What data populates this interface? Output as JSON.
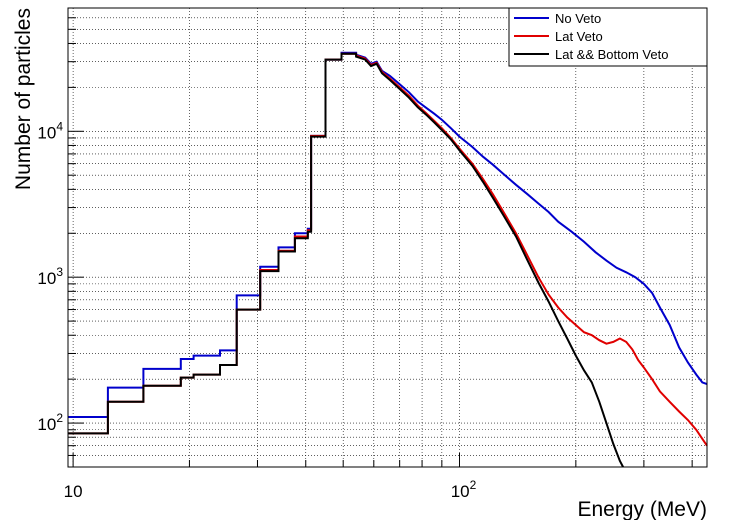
{
  "chart_data": {
    "type": "line",
    "title": "",
    "xlabel": "Energy (MeV)",
    "ylabel": "Number of particles",
    "xscale": "log",
    "yscale": "log",
    "xlim": [
      9.7,
      437
    ],
    "ylim": [
      50,
      70000
    ],
    "grid": true,
    "legend_position": "top-right",
    "x_ticks": [
      {
        "value": 10,
        "label": "10"
      },
      {
        "value": 100,
        "label": "10",
        "exp": "2"
      }
    ],
    "y_ticks": [
      {
        "value": 100,
        "label": "10",
        "exp": "2"
      },
      {
        "value": 1000,
        "label": "10",
        "exp": "3"
      },
      {
        "value": 10000,
        "label": "10",
        "exp": "4"
      }
    ],
    "series": [
      {
        "name": "No Veto",
        "color": "#0000cc",
        "points": [
          [
            9.7,
            110
          ],
          [
            12.3,
            110
          ],
          [
            12.3,
            175
          ],
          [
            15.2,
            175
          ],
          [
            15.2,
            235
          ],
          [
            19.0,
            235
          ],
          [
            19.0,
            275
          ],
          [
            20.5,
            275
          ],
          [
            20.5,
            290
          ],
          [
            24.0,
            290
          ],
          [
            24.0,
            315
          ],
          [
            26.5,
            315
          ],
          [
            26.5,
            750
          ],
          [
            30.5,
            750
          ],
          [
            30.5,
            1180
          ],
          [
            34.0,
            1180
          ],
          [
            34.0,
            1600
          ],
          [
            37.5,
            1600
          ],
          [
            37.5,
            2000
          ],
          [
            40.5,
            2000
          ],
          [
            40.5,
            2150
          ],
          [
            41.3,
            2150
          ],
          [
            41.3,
            9300
          ],
          [
            45.0,
            9300
          ],
          [
            45.0,
            31000
          ],
          [
            49.5,
            31000
          ],
          [
            49.5,
            34500
          ],
          [
            54.0,
            34500
          ],
          [
            54.0,
            33500
          ],
          [
            57.0,
            32000
          ],
          [
            59.0,
            29000
          ],
          [
            61.0,
            30000
          ],
          [
            63.0,
            26000
          ],
          [
            66.0,
            24000
          ],
          [
            70.0,
            21000
          ],
          [
            74.0,
            18500
          ],
          [
            78.0,
            16000
          ],
          [
            82.0,
            14500
          ],
          [
            86.0,
            13200
          ],
          [
            90.0,
            12000
          ],
          [
            95.0,
            10500
          ],
          [
            100.0,
            9200
          ],
          [
            108.0,
            7800
          ],
          [
            115.0,
            6700
          ],
          [
            122.0,
            5900
          ],
          [
            130.0,
            5100
          ],
          [
            140.0,
            4300
          ],
          [
            150.0,
            3700
          ],
          [
            160.0,
            3200
          ],
          [
            170.0,
            2800
          ],
          [
            180.0,
            2400
          ],
          [
            195.0,
            2050
          ],
          [
            210.0,
            1750
          ],
          [
            225.0,
            1480
          ],
          [
            240.0,
            1300
          ],
          [
            255.0,
            1160
          ],
          [
            270.0,
            1080
          ],
          [
            285.0,
            1000
          ],
          [
            300.0,
            900
          ],
          [
            315.0,
            780
          ],
          [
            330.0,
            620
          ],
          [
            350.0,
            470
          ],
          [
            370.0,
            330
          ],
          [
            390.0,
            260
          ],
          [
            410.0,
            215
          ],
          [
            425.0,
            190
          ],
          [
            437.0,
            185
          ]
        ]
      },
      {
        "name": "Lat Veto",
        "color": "#e00000",
        "points": [
          [
            9.7,
            85
          ],
          [
            12.3,
            85
          ],
          [
            12.3,
            140
          ],
          [
            15.2,
            140
          ],
          [
            15.2,
            180
          ],
          [
            19.0,
            180
          ],
          [
            19.0,
            205
          ],
          [
            20.5,
            205
          ],
          [
            20.5,
            215
          ],
          [
            24.0,
            215
          ],
          [
            24.0,
            250
          ],
          [
            26.5,
            250
          ],
          [
            26.5,
            600
          ],
          [
            30.5,
            600
          ],
          [
            30.5,
            1120
          ],
          [
            34.0,
            1120
          ],
          [
            34.0,
            1520
          ],
          [
            37.5,
            1520
          ],
          [
            37.5,
            1900
          ],
          [
            40.5,
            1900
          ],
          [
            40.5,
            2100
          ],
          [
            41.3,
            2100
          ],
          [
            41.3,
            9300
          ],
          [
            45.0,
            9300
          ],
          [
            45.0,
            31000
          ],
          [
            49.5,
            31000
          ],
          [
            49.5,
            34000
          ],
          [
            54.0,
            34000
          ],
          [
            54.0,
            33000
          ],
          [
            57.0,
            31500
          ],
          [
            59.0,
            28500
          ],
          [
            61.0,
            29500
          ],
          [
            63.0,
            25500
          ],
          [
            66.0,
            23000
          ],
          [
            70.0,
            20000
          ],
          [
            74.0,
            17500
          ],
          [
            78.0,
            15000
          ],
          [
            82.0,
            13300
          ],
          [
            86.0,
            11800
          ],
          [
            90.0,
            10500
          ],
          [
            95.0,
            9000
          ],
          [
            100.0,
            7600
          ],
          [
            108.0,
            6000
          ],
          [
            115.0,
            4700
          ],
          [
            122.0,
            3700
          ],
          [
            130.0,
            2800
          ],
          [
            140.0,
            2000
          ],
          [
            150.0,
            1400
          ],
          [
            160.0,
            1000
          ],
          [
            170.0,
            760
          ],
          [
            180.0,
            620
          ],
          [
            190.0,
            530
          ],
          [
            200.0,
            470
          ],
          [
            210.0,
            420
          ],
          [
            220.0,
            400
          ],
          [
            230.0,
            370
          ],
          [
            240.0,
            350
          ],
          [
            250.0,
            360
          ],
          [
            260.0,
            380
          ],
          [
            270.0,
            360
          ],
          [
            280.0,
            320
          ],
          [
            290.0,
            270
          ],
          [
            300.0,
            240
          ],
          [
            315.0,
            200
          ],
          [
            330.0,
            165
          ],
          [
            350.0,
            140
          ],
          [
            370.0,
            120
          ],
          [
            390.0,
            105
          ],
          [
            410.0,
            90
          ],
          [
            425.0,
            78
          ],
          [
            437.0,
            70
          ]
        ]
      },
      {
        "name": "Lat && Bottom Veto",
        "color": "#000000",
        "points": [
          [
            9.7,
            85
          ],
          [
            12.3,
            85
          ],
          [
            12.3,
            140
          ],
          [
            15.2,
            140
          ],
          [
            15.2,
            180
          ],
          [
            19.0,
            180
          ],
          [
            19.0,
            205
          ],
          [
            20.5,
            205
          ],
          [
            20.5,
            215
          ],
          [
            24.0,
            215
          ],
          [
            24.0,
            250
          ],
          [
            26.5,
            250
          ],
          [
            26.5,
            600
          ],
          [
            30.5,
            600
          ],
          [
            30.5,
            1100
          ],
          [
            34.0,
            1100
          ],
          [
            34.0,
            1500
          ],
          [
            37.5,
            1500
          ],
          [
            37.5,
            1850
          ],
          [
            40.5,
            1850
          ],
          [
            40.5,
            2050
          ],
          [
            41.3,
            2050
          ],
          [
            41.3,
            9200
          ],
          [
            45.0,
            9200
          ],
          [
            45.0,
            31000
          ],
          [
            49.5,
            31000
          ],
          [
            49.5,
            34000
          ],
          [
            54.0,
            34000
          ],
          [
            54.0,
            32500
          ],
          [
            57.0,
            31000
          ],
          [
            59.0,
            28000
          ],
          [
            61.0,
            29000
          ],
          [
            63.0,
            25000
          ],
          [
            66.0,
            22500
          ],
          [
            70.0,
            19500
          ],
          [
            74.0,
            17000
          ],
          [
            78.0,
            14600
          ],
          [
            82.0,
            13000
          ],
          [
            86.0,
            11500
          ],
          [
            90.0,
            10200
          ],
          [
            95.0,
            8800
          ],
          [
            100.0,
            7400
          ],
          [
            108.0,
            5800
          ],
          [
            115.0,
            4500
          ],
          [
            122.0,
            3500
          ],
          [
            130.0,
            2650
          ],
          [
            140.0,
            1900
          ],
          [
            150.0,
            1300
          ],
          [
            160.0,
            920
          ],
          [
            170.0,
            680
          ],
          [
            180.0,
            500
          ],
          [
            190.0,
            380
          ],
          [
            200.0,
            290
          ],
          [
            210.0,
            230
          ],
          [
            220.0,
            190
          ],
          [
            230.0,
            140
          ],
          [
            240.0,
            100
          ],
          [
            250.0,
            72
          ],
          [
            260.0,
            55
          ],
          [
            265.0,
            48
          ]
        ]
      }
    ]
  }
}
